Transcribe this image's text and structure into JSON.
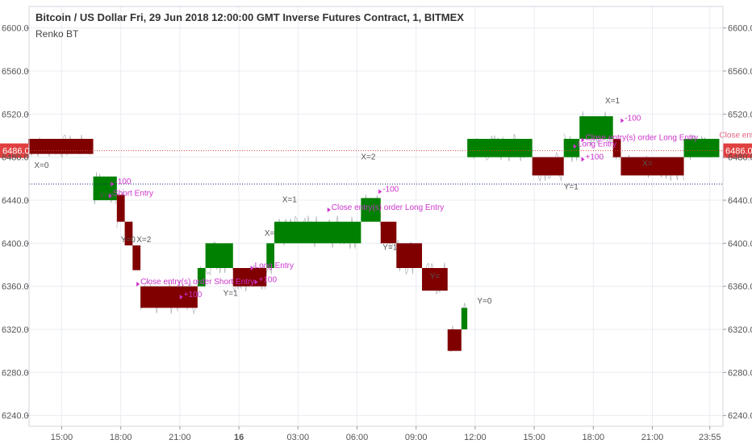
{
  "header": {
    "title": "Bitcoin / US Dollar Fri, 29 Jun 2018 12:00:00 GMT Inverse Futures Contract, 1, BITMEX",
    "indicator": "Renko BT"
  },
  "colors": {
    "up_brick": "#008000",
    "down_brick": "#800000",
    "price_line": "#e04040",
    "dotted_line": "#1a2a6a",
    "annotation": "#cc33cc",
    "signal_text": "#555555",
    "grid": "#e9ecf2"
  },
  "chart_data": {
    "type": "renko",
    "ylim": [
      6230,
      6620
    ],
    "y_ticks": [
      6240.0,
      6280.0,
      6320.0,
      6360.0,
      6400.0,
      6440.0,
      6480.0,
      6520.0,
      6560.0,
      6600.0
    ],
    "y_tick_labels": [
      "6240.0",
      "6280.0",
      "6320.0",
      "6360.0",
      "6400.0",
      "6440.0",
      "6480.0",
      "6520.0",
      "6560.0",
      "6600.0"
    ],
    "x_ticks": [
      "15:00",
      "18:00",
      "21:00",
      "16",
      "03:00",
      "06:00",
      "09:00",
      "12:00",
      "15:00",
      "18:00",
      "21:00",
      "23:55"
    ],
    "x_tick_bold": [
      false,
      false,
      false,
      true,
      false,
      false,
      false,
      false,
      false,
      false,
      false,
      false
    ],
    "current_price": 6486.0,
    "current_price_label": "6486.0",
    "dotted_line_value": 6455.0,
    "bricks": [
      {
        "t0": 13.3,
        "t1": 16.6,
        "low": 6483,
        "high": 6497,
        "dir": "down"
      },
      {
        "t0": 16.6,
        "t1": 17.8,
        "low": 6440,
        "high": 6462,
        "dir": "up"
      },
      {
        "t0": 17.8,
        "t1": 18.2,
        "low": 6420,
        "high": 6445,
        "dir": "down"
      },
      {
        "t0": 18.2,
        "t1": 18.6,
        "low": 6398,
        "high": 6420,
        "dir": "down"
      },
      {
        "t0": 18.6,
        "t1": 19.0,
        "low": 6375,
        "high": 6398,
        "dir": "down"
      },
      {
        "t0": 19.0,
        "t1": 21.9,
        "low": 6340,
        "high": 6360,
        "dir": "down"
      },
      {
        "t0": 21.9,
        "t1": 22.3,
        "low": 6360,
        "high": 6377,
        "dir": "up"
      },
      {
        "t0": 22.3,
        "t1": 23.7,
        "low": 6377,
        "high": 6400,
        "dir": "up"
      },
      {
        "t0": 23.7,
        "t1": 25.4,
        "low": 6360,
        "high": 6377,
        "dir": "down"
      },
      {
        "t0": 25.4,
        "t1": 25.8,
        "low": 6377,
        "high": 6400,
        "dir": "up"
      },
      {
        "t0": 25.8,
        "t1": 30.2,
        "low": 6400,
        "high": 6420,
        "dir": "up"
      },
      {
        "t0": 30.2,
        "t1": 31.2,
        "low": 6420,
        "high": 6442,
        "dir": "up"
      },
      {
        "t0": 31.2,
        "t1": 32.0,
        "low": 6400,
        "high": 6420,
        "dir": "down"
      },
      {
        "t0": 32.0,
        "t1": 33.3,
        "low": 6377,
        "high": 6400,
        "dir": "down"
      },
      {
        "t0": 33.3,
        "t1": 34.6,
        "low": 6356,
        "high": 6377,
        "dir": "down"
      },
      {
        "t0": 34.6,
        "t1": 35.3,
        "low": 6300,
        "high": 6320,
        "dir": "down"
      },
      {
        "t0": 35.3,
        "t1": 35.6,
        "low": 6320,
        "high": 6340,
        "dir": "up"
      },
      {
        "t0": 35.6,
        "t1": 38.9,
        "low": 6480,
        "high": 6497,
        "dir": "up"
      },
      {
        "t0": 38.9,
        "t1": 40.5,
        "low": 6463,
        "high": 6480,
        "dir": "down"
      },
      {
        "t0": 40.5,
        "t1": 41.3,
        "low": 6480,
        "high": 6497,
        "dir": "up"
      },
      {
        "t0": 41.3,
        "t1": 43.0,
        "low": 6497,
        "high": 6518,
        "dir": "up"
      },
      {
        "t0": 43.0,
        "t1": 43.4,
        "low": 6480,
        "high": 6497,
        "dir": "down"
      },
      {
        "t0": 43.4,
        "t1": 46.6,
        "low": 6463,
        "high": 6480,
        "dir": "down"
      },
      {
        "t0": 46.6,
        "t1": 48.4,
        "low": 6480,
        "high": 6497,
        "dir": "up"
      }
    ],
    "annotations": [
      {
        "text": "X=0",
        "t": 13.6,
        "v": 6470,
        "kind": "signal"
      },
      {
        "text": "Y=0",
        "t": 16.9,
        "v": 6442,
        "kind": "signal"
      },
      {
        "text": "Short Entry",
        "t": 17.6,
        "v": 6444,
        "kind": "trade"
      },
      {
        "text": "-100",
        "t": 17.7,
        "v": 6455,
        "kind": "trade"
      },
      {
        "text": "Y=0",
        "t": 18.0,
        "v": 6401,
        "kind": "signal"
      },
      {
        "text": "X=2",
        "t": 18.8,
        "v": 6401,
        "kind": "signal"
      },
      {
        "text": "Close entry(s) order Short Entry",
        "t": 19.0,
        "v": 6362,
        "kind": "trade"
      },
      {
        "text": "+100",
        "t": 21.2,
        "v": 6350,
        "kind": "trade"
      },
      {
        "text": "Y=1",
        "t": 23.2,
        "v": 6351,
        "kind": "signal"
      },
      {
        "text": "Long Entry",
        "t": 24.8,
        "v": 6377,
        "kind": "trade"
      },
      {
        "text": "+100",
        "t": 25.0,
        "v": 6364,
        "kind": "trade"
      },
      {
        "text": "X=1",
        "t": 26.2,
        "v": 6438,
        "kind": "signal"
      },
      {
        "text": "X=",
        "t": 25.3,
        "v": 6407,
        "kind": "signal"
      },
      {
        "text": "X=2",
        "t": 30.2,
        "v": 6478,
        "kind": "signal"
      },
      {
        "text": "-100",
        "t": 31.3,
        "v": 6448,
        "kind": "trade"
      },
      {
        "text": "Close entry(s) order Long Entry",
        "t": 28.7,
        "v": 6431,
        "kind": "trade"
      },
      {
        "text": "Y=1",
        "t": 31.3,
        "v": 6394,
        "kind": "signal"
      },
      {
        "text": "Y=",
        "t": 33.7,
        "v": 6367,
        "kind": "signal"
      },
      {
        "text": "Y=0",
        "t": 36.1,
        "v": 6344,
        "kind": "signal"
      },
      {
        "text": "Y=1",
        "t": 40.5,
        "v": 6450,
        "kind": "signal"
      },
      {
        "text": "X=1",
        "t": 42.6,
        "v": 6530,
        "kind": "signal"
      },
      {
        "text": "-100",
        "t": 43.6,
        "v": 6514,
        "kind": "trade"
      },
      {
        "text": "Close entry(s) order Long Entry",
        "t": 41.6,
        "v": 6496,
        "kind": "trade"
      },
      {
        "text": "Long Entry",
        "t": 41.2,
        "v": 6490,
        "kind": "trade"
      },
      {
        "text": "+100",
        "t": 41.6,
        "v": 6478,
        "kind": "trade"
      },
      {
        "text": "X=",
        "t": 44.5,
        "v": 6472,
        "kind": "signal"
      },
      {
        "text": "Close entry(s)",
        "t": 48.4,
        "v": 6498,
        "kind": "close"
      }
    ]
  }
}
